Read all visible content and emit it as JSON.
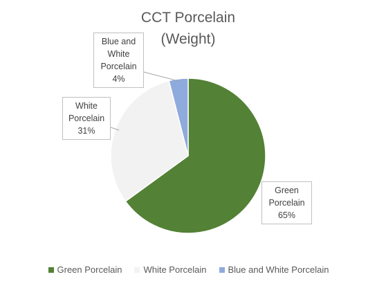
{
  "chart_data": {
    "type": "pie",
    "title": "CCT Porcelain (Weight)",
    "categories": [
      "Green Porcelain",
      "White Porcelain",
      "Blue and White Porcelain"
    ],
    "values": [
      65,
      31,
      4
    ],
    "value_labels": [
      "65%",
      "31%",
      "4%"
    ],
    "colors": [
      "#538135",
      "#f2f2f2",
      "#8faadc"
    ],
    "legend": "bottom"
  }
}
